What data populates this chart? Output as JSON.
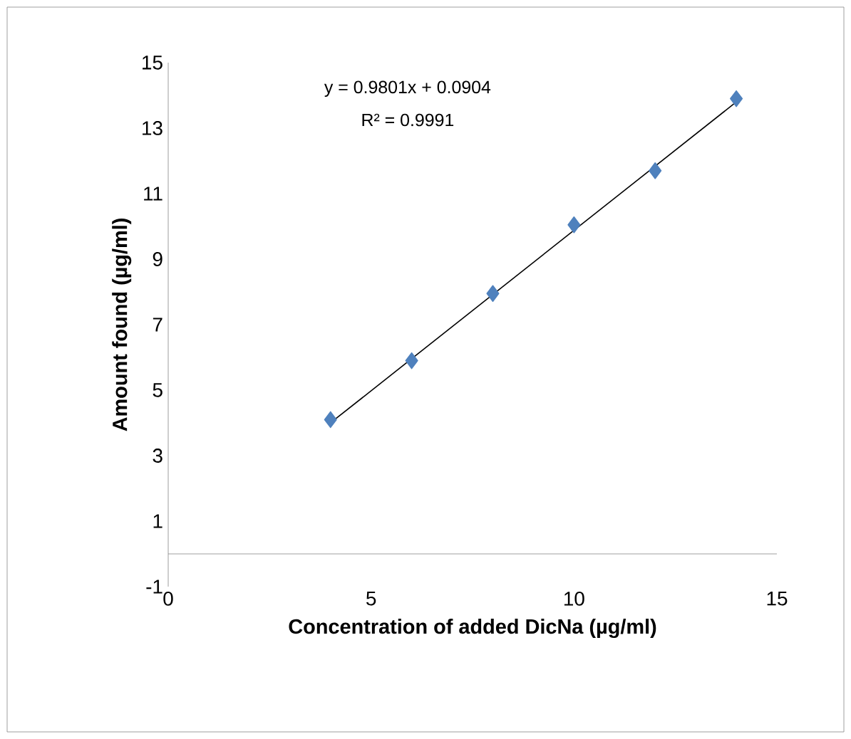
{
  "chart_data": {
    "type": "scatter",
    "xlabel": "Concentration of added DicNa (µg/ml)",
    "ylabel": "Amount found (µg/ml)",
    "xlim": [
      0,
      15
    ],
    "ylim": [
      -1,
      15
    ],
    "xticks": [
      0,
      5,
      10,
      15
    ],
    "yticks": [
      -1,
      1,
      3,
      5,
      7,
      9,
      11,
      13,
      15
    ],
    "grid": false,
    "legend": false,
    "marker": "diamond",
    "annotations": [
      "y = 0.9801x + 0.0904",
      "R² = 0.9991"
    ],
    "series": [
      {
        "type": "scatter",
        "color": "#4f81bd",
        "x": [
          4,
          6,
          8,
          10,
          12,
          14
        ],
        "values": [
          4.1,
          5.9,
          7.95,
          10.05,
          11.7,
          13.9
        ]
      },
      {
        "type": "line",
        "color": "#000000",
        "marker": "none",
        "x": [
          4,
          14
        ],
        "values": [
          4.0,
          13.8
        ]
      }
    ]
  }
}
